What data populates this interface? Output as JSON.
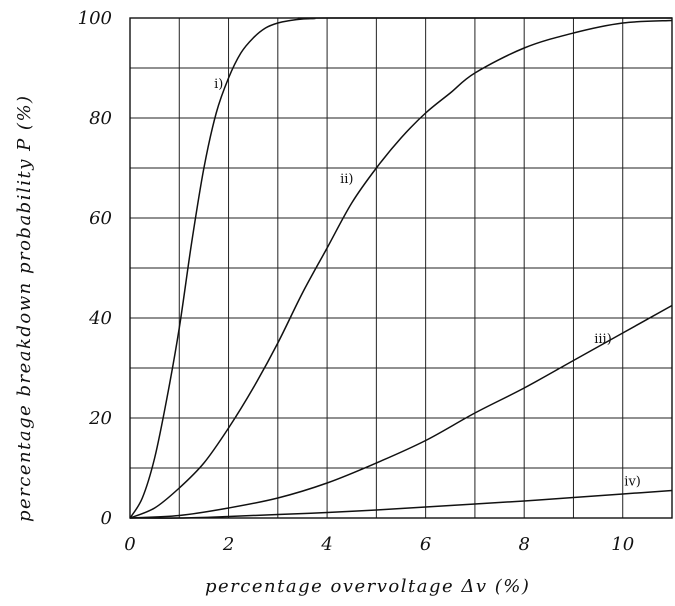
{
  "chart_data": {
    "type": "line",
    "title": "",
    "xlabel": "percentage overvoltage Δv (%)",
    "ylabel": "percentage breakdown probability P (%)",
    "xlim": [
      0,
      11
    ],
    "ylim": [
      0,
      100
    ],
    "x_ticks": [
      0,
      2,
      4,
      6,
      8,
      10
    ],
    "y_ticks": [
      0,
      20,
      40,
      60,
      80,
      100
    ],
    "grid": true,
    "series": [
      {
        "name": "i)",
        "x": [
          0,
          0.25,
          0.5,
          0.75,
          1.0,
          1.25,
          1.5,
          1.75,
          2.0,
          2.25,
          2.5,
          2.75,
          3.0,
          3.25,
          3.5,
          3.75,
          4.0,
          11.0
        ],
        "y": [
          0,
          4,
          12,
          24,
          38,
          55,
          70,
          81,
          88,
          93,
          96,
          98,
          99,
          99.5,
          99.8,
          99.9,
          100,
          100
        ]
      },
      {
        "name": "ii)",
        "x": [
          0,
          0.5,
          1.0,
          1.5,
          2.0,
          2.5,
          3.0,
          3.5,
          4.0,
          4.5,
          5.0,
          5.5,
          6.0,
          6.5,
          7.0,
          8.0,
          9.0,
          10.0,
          11.0
        ],
        "y": [
          0,
          2,
          6,
          11,
          18,
          26,
          35,
          45,
          54,
          63,
          70,
          76,
          81,
          85,
          89,
          94,
          97,
          99,
          99.5
        ]
      },
      {
        "name": "iii)",
        "x": [
          0,
          1,
          2,
          3,
          4,
          5,
          6,
          7,
          8,
          9,
          10,
          11
        ],
        "y": [
          0,
          0.5,
          2,
          4,
          7,
          11,
          15.5,
          21,
          26,
          31.5,
          37,
          42.5
        ]
      },
      {
        "name": "iv)",
        "x": [
          0,
          1,
          2,
          3,
          4,
          5,
          6,
          7,
          8,
          9,
          10,
          11
        ],
        "y": [
          0,
          0,
          0.3,
          0.7,
          1.1,
          1.6,
          2.2,
          2.8,
          3.4,
          4.1,
          4.8,
          5.5
        ]
      }
    ],
    "series_labels": [
      {
        "text": "i)",
        "at": [
          1.8,
          86
        ]
      },
      {
        "text": "ii)",
        "at": [
          4.4,
          67
        ]
      },
      {
        "text": "iii)",
        "at": [
          9.6,
          35
        ]
      },
      {
        "text": "iv)",
        "at": [
          10.2,
          6.5
        ]
      }
    ]
  }
}
